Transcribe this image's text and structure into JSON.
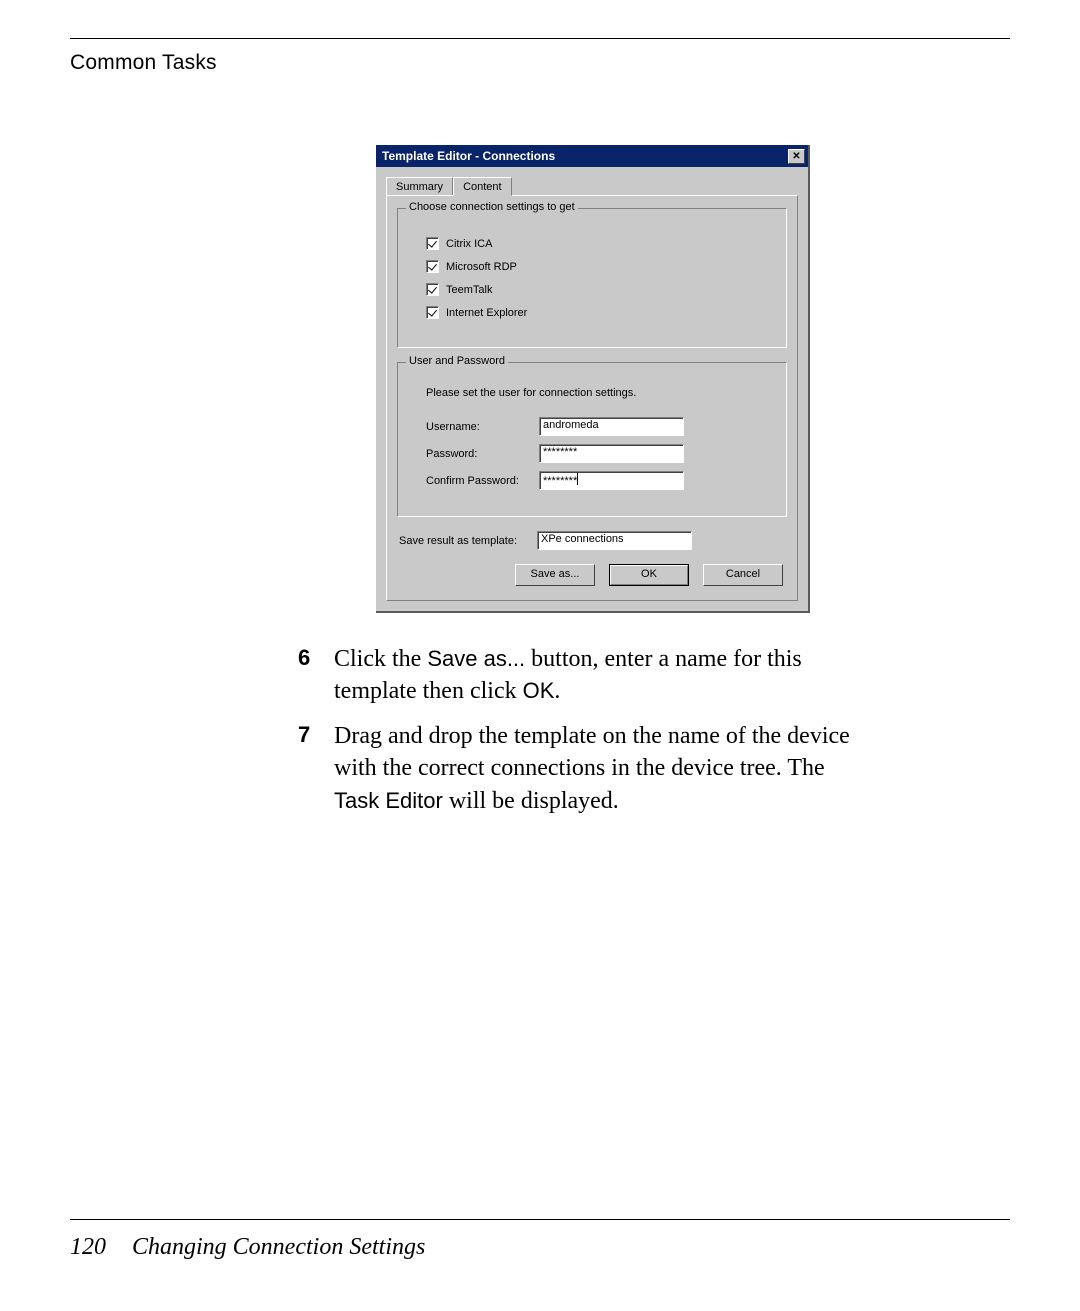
{
  "header": {
    "label": "Common Tasks"
  },
  "dialog": {
    "title": "Template Editor - Connections",
    "tabs": {
      "summary": "Summary",
      "content": "Content"
    },
    "group1": {
      "legend": "Choose connection settings to get",
      "items": [
        {
          "label": "Citrix ICA",
          "checked": true
        },
        {
          "label": "Microsoft RDP",
          "checked": true
        },
        {
          "label": "TeemTalk",
          "checked": true
        },
        {
          "label": "Internet Explorer",
          "checked": true
        }
      ]
    },
    "group2": {
      "legend": "User and Password",
      "note": "Please set the user for connection settings.",
      "username_label": "Username:",
      "username_value": "andromeda",
      "password_label": "Password:",
      "password_value": "********",
      "confirm_label": "Confirm Password:",
      "confirm_value": "********"
    },
    "save_label": "Save result as template:",
    "save_value": "XPe connections",
    "buttons": {
      "saveas": "Save as...",
      "ok": "OK",
      "cancel": "Cancel"
    }
  },
  "instructions": {
    "step6": {
      "num": "6",
      "t1": "Click the ",
      "code1": "Save as...",
      "t2": " button, enter a name for this template then click ",
      "code2": "OK",
      "t3": "."
    },
    "step7": {
      "num": "7",
      "t1": "Drag and drop the template on the name of the device with the correct connections in the device tree. The ",
      "code1": "Task Editor",
      "t2": " will be displayed."
    }
  },
  "footer": {
    "page": "120",
    "section": "Changing Connection Settings"
  },
  "colors": {
    "titlebar": "#0a246a",
    "dialog_bg": "#c9c9c9"
  }
}
